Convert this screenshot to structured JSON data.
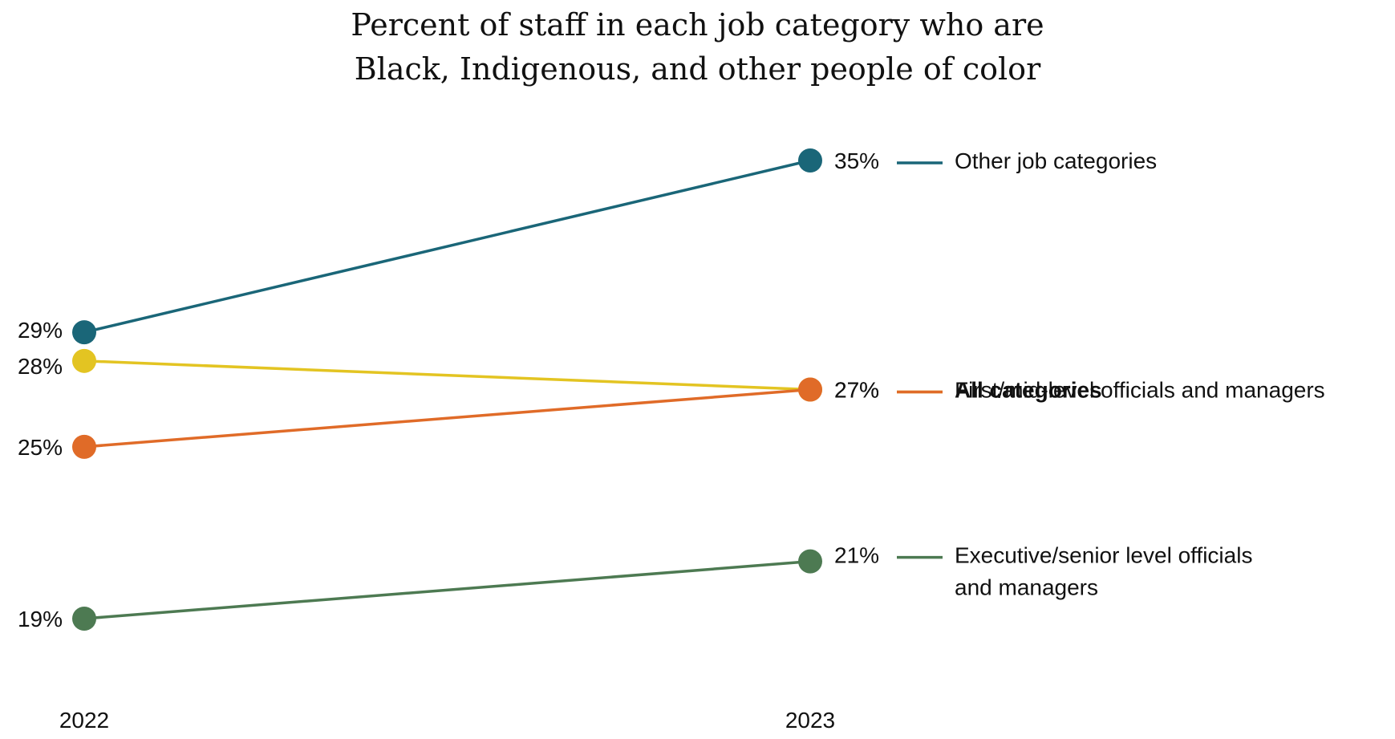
{
  "chart_data": {
    "type": "line",
    "title_lines": [
      "Percent of staff in each job category who are",
      "Black, Indigenous, and other people of color"
    ],
    "x": [
      "2022",
      "2023"
    ],
    "ylim": [
      19,
      35
    ],
    "unit": "%",
    "legend_position": "right",
    "grid": false,
    "series": [
      {
        "name": "Other job categories",
        "name_lines": [
          "Other job categories"
        ],
        "values": [
          29,
          35
        ],
        "color": "#1a6678",
        "bold": false
      },
      {
        "name": "First/mid-level officials and managers",
        "name_lines": [
          "First/mid-level officials and managers"
        ],
        "values": [
          28,
          27
        ],
        "color": "#e3c422",
        "bold": false
      },
      {
        "name": "All categories",
        "name_lines": [
          "All categories"
        ],
        "values": [
          25,
          27
        ],
        "color": "#e06b28",
        "bold": true
      },
      {
        "name": "Executive/senior level officials and managers",
        "name_lines": [
          "Executive/senior level officials",
          "and managers"
        ],
        "values": [
          19,
          21
        ],
        "color": "#4d7a52",
        "bold": false
      }
    ]
  }
}
